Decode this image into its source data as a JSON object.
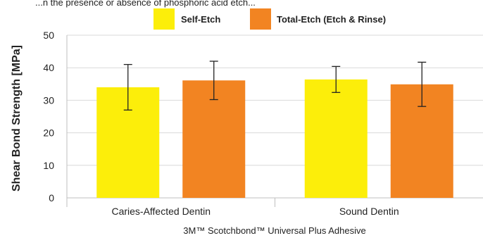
{
  "caption": "...n the presence or absence of phosphoric acid etch...",
  "chart_data": {
    "type": "bar",
    "categories": [
      "Caries-Affected Dentin",
      "Sound Dentin"
    ],
    "series": [
      {
        "name": "Self-Etch",
        "color": "#fcee0a",
        "values": [
          34.0,
          36.4
        ],
        "error": [
          7.0,
          4.0
        ]
      },
      {
        "name": "Total-Etch (Etch & Rinse)",
        "color": "#f28422",
        "values": [
          36.1,
          34.9
        ],
        "error": [
          5.9,
          6.8
        ]
      }
    ],
    "ylabel": "Shear Bond Strength [MPa]",
    "xlabel": "3M™ Scotchbond™ Universal Plus Adhesive",
    "ylim": [
      0,
      50
    ],
    "yticks": [
      "0",
      "10",
      "20",
      "30",
      "40",
      "50"
    ],
    "grid": true,
    "legend": "top-center"
  }
}
